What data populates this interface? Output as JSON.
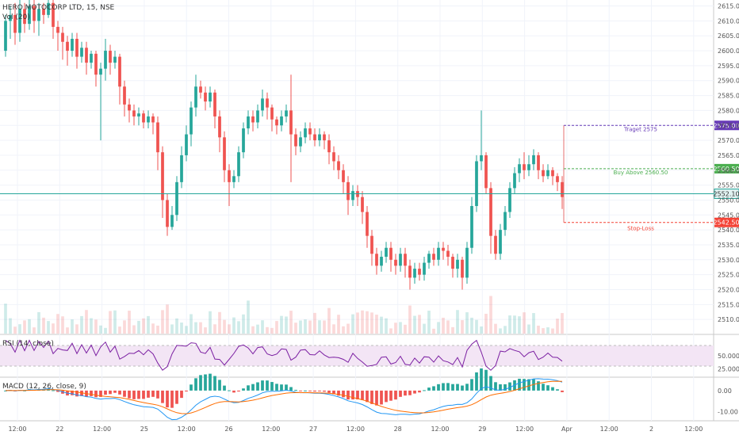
{
  "header": {
    "symbol_line": "HERO MOTOCORP LTD, 15, NSE",
    "vol_label": "Vol (20)",
    "rsi_label": "RSI (14, close)",
    "macd_label": "MACD (12, 26, close, 9)"
  },
  "colors": {
    "up": "#26a69a",
    "down": "#ef5350",
    "rsi_line": "#7b1fa2",
    "rsi_band": "#f3e5f5",
    "macd_line": "#2196f3",
    "signal_line": "#ff6d00",
    "target": "#673ab7",
    "entry": "#4caf50",
    "stop": "#f44336",
    "current": "#26a69a"
  },
  "price_axis": {
    "ticks": [
      "2615.00",
      "2610.00",
      "2605.00",
      "2600.00",
      "2595.00",
      "2590.00",
      "2585.00",
      "2580.00",
      "2575.00",
      "2570.00",
      "2565.00",
      "2560.00",
      "2555.00",
      "2550.00",
      "2545.00",
      "2540.00",
      "2535.00",
      "2530.00",
      "2525.00",
      "2520.00",
      "2515.00",
      "2510.00"
    ]
  },
  "rsi_axis": {
    "ticks": [
      "50.0000",
      "25.0000"
    ]
  },
  "macd_axis": {
    "ticks": [
      "0.00",
      "-10.00"
    ]
  },
  "time_axis": {
    "labels": [
      "12:00",
      "22",
      "12:00",
      "25",
      "12:00",
      "26",
      "12:00",
      "27",
      "12:00",
      "28",
      "12:00",
      "29",
      "12:00",
      "Apr",
      "12:00",
      "2",
      "12:00"
    ]
  },
  "annotations": {
    "target_text": "Traget 2575",
    "entry_text": "Buy Above 2560.50",
    "stop_text": "Stop-Loss",
    "target_price": 2575,
    "entry_price": 2560.5,
    "stop_price": 2542.5,
    "current_price": 2552.1,
    "target_tag": "2575.00",
    "entry_tag": "2560.50",
    "stop_tag": "2542.50",
    "current_tag": "2552.10"
  },
  "chart_data": {
    "type": "candlestick",
    "ylim": [
      2505,
      2617
    ],
    "candles": [
      [
        2600,
        2610,
        2598,
        2612,
        "u"
      ],
      [
        2610,
        2612,
        2604,
        2615,
        "u"
      ],
      [
        2612,
        2606,
        2602,
        2616,
        "d"
      ],
      [
        2606,
        2614,
        2603,
        2617,
        "u"
      ],
      [
        2614,
        2609,
        2606,
        2616,
        "d"
      ],
      [
        2609,
        2615,
        2607,
        2617,
        "u"
      ],
      [
        2615,
        2610,
        2606,
        2617,
        "d"
      ],
      [
        2610,
        2614,
        2605,
        2616,
        "u"
      ],
      [
        2614,
        2612,
        2609,
        2616,
        "d"
      ],
      [
        2612,
        2616,
        2611,
        2617,
        "u"
      ],
      [
        2616,
        2608,
        2604,
        2617,
        "d"
      ],
      [
        2608,
        2606,
        2600,
        2610,
        "d"
      ],
      [
        2606,
        2603,
        2597,
        2608,
        "d"
      ],
      [
        2603,
        2600,
        2595,
        2605,
        "d"
      ],
      [
        2600,
        2604,
        2598,
        2606,
        "u"
      ],
      [
        2604,
        2598,
        2594,
        2606,
        "d"
      ],
      [
        2598,
        2601,
        2596,
        2603,
        "u"
      ],
      [
        2601,
        2596,
        2592,
        2603,
        "d"
      ],
      [
        2596,
        2599,
        2594,
        2600,
        "u"
      ],
      [
        2599,
        2592,
        2588,
        2600,
        "d"
      ],
      [
        2592,
        2594,
        2570,
        2596,
        "u"
      ],
      [
        2594,
        2600,
        2590,
        2604,
        "u"
      ],
      [
        2600,
        2596,
        2592,
        2602,
        "d"
      ],
      [
        2596,
        2598,
        2594,
        2600,
        "u"
      ],
      [
        2598,
        2588,
        2582,
        2599,
        "d"
      ],
      [
        2588,
        2582,
        2578,
        2590,
        "d"
      ],
      [
        2582,
        2580,
        2576,
        2584,
        "d"
      ],
      [
        2580,
        2578,
        2575,
        2582,
        "d"
      ],
      [
        2578,
        2579,
        2575,
        2581,
        "u"
      ],
      [
        2579,
        2576,
        2574,
        2580,
        "d"
      ],
      [
        2576,
        2578,
        2574,
        2580,
        "u"
      ],
      [
        2578,
        2576,
        2572,
        2579,
        "d"
      ],
      [
        2576,
        2566,
        2560,
        2578,
        "d"
      ],
      [
        2566,
        2550,
        2544,
        2568,
        "d"
      ],
      [
        2550,
        2541,
        2538,
        2552,
        "d"
      ],
      [
        2541,
        2545,
        2540,
        2548,
        "u"
      ],
      [
        2545,
        2556,
        2543,
        2558,
        "u"
      ],
      [
        2556,
        2565,
        2554,
        2568,
        "u"
      ],
      [
        2565,
        2572,
        2563,
        2575,
        "u"
      ],
      [
        2572,
        2581,
        2568,
        2583,
        "u"
      ],
      [
        2581,
        2588,
        2578,
        2592,
        "u"
      ],
      [
        2588,
        2586,
        2584,
        2590,
        "d"
      ],
      [
        2586,
        2583,
        2580,
        2588,
        "d"
      ],
      [
        2583,
        2586,
        2581,
        2588,
        "u"
      ],
      [
        2586,
        2578,
        2574,
        2587,
        "d"
      ],
      [
        2578,
        2571,
        2566,
        2580,
        "d"
      ],
      [
        2571,
        2560,
        2556,
        2573,
        "d"
      ],
      [
        2560,
        2556,
        2548,
        2562,
        "d"
      ],
      [
        2556,
        2558,
        2554,
        2560,
        "u"
      ],
      [
        2558,
        2566,
        2556,
        2568,
        "u"
      ],
      [
        2566,
        2574,
        2564,
        2576,
        "u"
      ],
      [
        2574,
        2578,
        2572,
        2580,
        "u"
      ],
      [
        2578,
        2576,
        2573,
        2580,
        "d"
      ],
      [
        2576,
        2580,
        2574,
        2582,
        "u"
      ],
      [
        2580,
        2584,
        2578,
        2587,
        "u"
      ],
      [
        2584,
        2581,
        2577,
        2586,
        "d"
      ],
      [
        2581,
        2577,
        2573,
        2582,
        "d"
      ],
      [
        2577,
        2575,
        2572,
        2578,
        "d"
      ],
      [
        2575,
        2578,
        2573,
        2580,
        "u"
      ],
      [
        2578,
        2580,
        2576,
        2582,
        "u"
      ],
      [
        2580,
        2572,
        2556,
        2592,
        "d"
      ],
      [
        2572,
        2568,
        2565,
        2574,
        "d"
      ],
      [
        2568,
        2571,
        2566,
        2573,
        "u"
      ],
      [
        2571,
        2574,
        2569,
        2576,
        "u"
      ],
      [
        2574,
        2572,
        2570,
        2576,
        "d"
      ],
      [
        2572,
        2570,
        2568,
        2574,
        "d"
      ],
      [
        2570,
        2572,
        2568,
        2574,
        "u"
      ],
      [
        2572,
        2570,
        2567,
        2573,
        "d"
      ],
      [
        2570,
        2566,
        2562,
        2572,
        "d"
      ],
      [
        2566,
        2563,
        2560,
        2568,
        "d"
      ],
      [
        2563,
        2560,
        2557,
        2565,
        "d"
      ],
      [
        2560,
        2556,
        2552,
        2562,
        "d"
      ],
      [
        2556,
        2550,
        2545,
        2558,
        "d"
      ],
      [
        2550,
        2553,
        2548,
        2555,
        "u"
      ],
      [
        2553,
        2551,
        2548,
        2555,
        "d"
      ],
      [
        2551,
        2546,
        2542,
        2553,
        "d"
      ],
      [
        2546,
        2538,
        2534,
        2548,
        "d"
      ],
      [
        2538,
        2532,
        2528,
        2540,
        "d"
      ],
      [
        2532,
        2528,
        2525,
        2534,
        "d"
      ],
      [
        2528,
        2531,
        2526,
        2533,
        "u"
      ],
      [
        2531,
        2534,
        2529,
        2536,
        "u"
      ],
      [
        2534,
        2530,
        2526,
        2536,
        "d"
      ],
      [
        2530,
        2528,
        2525,
        2532,
        "d"
      ],
      [
        2528,
        2532,
        2526,
        2534,
        "u"
      ],
      [
        2532,
        2528,
        2524,
        2534,
        "d"
      ],
      [
        2528,
        2524,
        2520,
        2530,
        "d"
      ],
      [
        2524,
        2527,
        2522,
        2529,
        "u"
      ],
      [
        2527,
        2525,
        2523,
        2529,
        "d"
      ],
      [
        2525,
        2529,
        2523,
        2531,
        "u"
      ],
      [
        2529,
        2532,
        2527,
        2533,
        "u"
      ],
      [
        2532,
        2530,
        2528,
        2534,
        "d"
      ],
      [
        2530,
        2534,
        2528,
        2536,
        "u"
      ],
      [
        2534,
        2533,
        2530,
        2536,
        "d"
      ],
      [
        2533,
        2531,
        2528,
        2535,
        "d"
      ],
      [
        2531,
        2527,
        2524,
        2532,
        "d"
      ],
      [
        2527,
        2530,
        2524,
        2532,
        "u"
      ],
      [
        2530,
        2524,
        2520,
        2531,
        "d"
      ],
      [
        2524,
        2534,
        2522,
        2536,
        "u"
      ],
      [
        2534,
        2548,
        2532,
        2551,
        "u"
      ],
      [
        2548,
        2563,
        2546,
        2565,
        "u"
      ],
      [
        2563,
        2565,
        2560,
        2580,
        "u"
      ],
      [
        2565,
        2554,
        2552,
        2566,
        "d"
      ],
      [
        2554,
        2538,
        2532,
        2556,
        "d"
      ],
      [
        2538,
        2532,
        2530,
        2540,
        "d"
      ],
      [
        2532,
        2540,
        2530,
        2542,
        "u"
      ],
      [
        2540,
        2546,
        2538,
        2548,
        "u"
      ],
      [
        2546,
        2554,
        2544,
        2556,
        "u"
      ],
      [
        2554,
        2559,
        2552,
        2561,
        "u"
      ],
      [
        2559,
        2562,
        2556,
        2564,
        "u"
      ],
      [
        2562,
        2560,
        2557,
        2566,
        "d"
      ],
      [
        2560,
        2562,
        2558,
        2565,
        "u"
      ],
      [
        2562,
        2565,
        2560,
        2567,
        "u"
      ],
      [
        2565,
        2560,
        2557,
        2566,
        "d"
      ],
      [
        2560,
        2558,
        2556,
        2562,
        "d"
      ],
      [
        2558,
        2560,
        2557,
        2562,
        "u"
      ],
      [
        2560,
        2558,
        2555,
        2561,
        "d"
      ],
      [
        2558,
        2556,
        2553,
        2559,
        "d"
      ],
      [
        2556,
        2551,
        2547,
        2558,
        "d"
      ]
    ],
    "rsi_levels": [
      70,
      30
    ],
    "volume_max": 100,
    "macd_range": [
      -14,
      6
    ]
  }
}
